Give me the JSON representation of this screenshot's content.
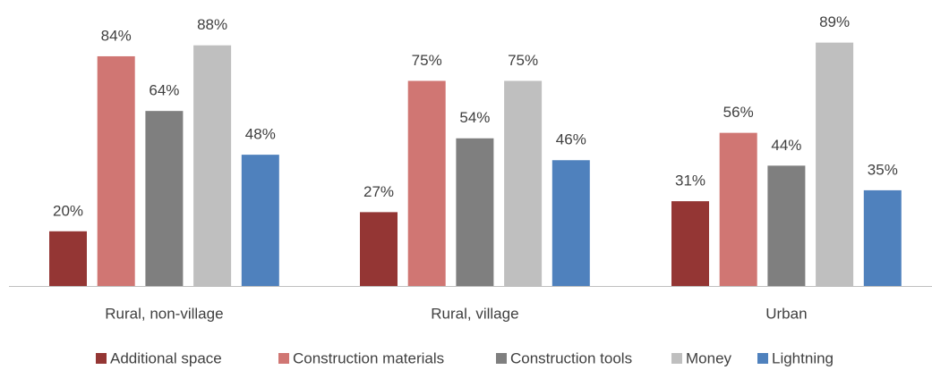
{
  "chart_data": {
    "type": "bar",
    "categories": [
      "Rural, non-village",
      "Rural, village",
      "Urban"
    ],
    "series": [
      {
        "name": "Additional space",
        "color": "#943634",
        "values": [
          20,
          27,
          31
        ],
        "value_labels": [
          "20%",
          "27%",
          "31%"
        ]
      },
      {
        "name": "Construction materials",
        "color": "#d07673",
        "values": [
          84,
          75,
          56
        ],
        "value_labels": [
          "84%",
          "75%",
          "56%"
        ]
      },
      {
        "name": "Construction tools",
        "color": "#7f7f7f",
        "values": [
          64,
          54,
          44
        ],
        "value_labels": [
          "64%",
          "54%",
          "44%"
        ]
      },
      {
        "name": "Money",
        "color": "#bfbfbf",
        "values": [
          88,
          75,
          89
        ],
        "value_labels": [
          "88%",
          "75%",
          "89%"
        ]
      },
      {
        "name": "Lightning",
        "color": "#4f81bd",
        "values": [
          48,
          46,
          35
        ],
        "value_labels": [
          "48%",
          "46%",
          "35%"
        ]
      }
    ],
    "legend": "bottom"
  }
}
